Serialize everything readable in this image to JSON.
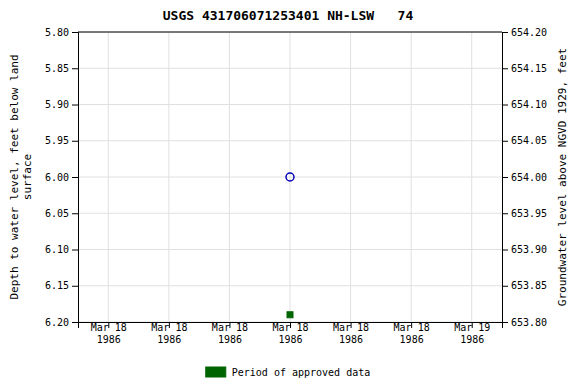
{
  "chart_data": {
    "type": "scatter",
    "title": "USGS 431706071253401 NH-LSW   74",
    "categories": [
      "Mar 18\n1986",
      "Mar 18\n1986",
      "Mar 18\n1986",
      "Mar 18\n1986",
      "Mar 18\n1986",
      "Mar 18\n1986",
      "Mar 19\n1986"
    ],
    "ylabel": "Depth to water level, feet below land\nsurface",
    "y2label": "Groundwater level above NGVD 1929, feet",
    "ylim": [
      6.2,
      5.8
    ],
    "yticks": [
      {
        "value": 5.8,
        "label": "5.80"
      },
      5.85,
      {
        "value": 5.9,
        "label": "5.90"
      },
      5.95,
      {
        "value": 6.0,
        "label": "6.00"
      },
      6.05,
      {
        "value": 6.1,
        "label": "6.10"
      },
      6.15,
      {
        "value": 6.2,
        "label": "6.20"
      }
    ],
    "y2lim": [
      653.8,
      654.2
    ],
    "y2ticks": [
      {
        "value": 654.2,
        "label": "654.20"
      },
      654.15,
      {
        "value": 654.1,
        "label": "654.10"
      },
      654.05,
      {
        "value": 654.0,
        "label": "654.00"
      },
      653.95,
      {
        "value": 653.9,
        "label": "653.90"
      },
      653.85,
      {
        "value": 653.8,
        "label": "653.80"
      }
    ],
    "series": [
      {
        "color": "#0000bb",
        "marker": "open-circle",
        "values": [
          null,
          null,
          null,
          6.0,
          null,
          null,
          null
        ]
      },
      {
        "name": "Period of approved data",
        "color": "#006400",
        "marker": "square",
        "values": [
          null,
          null,
          null,
          6.19,
          null,
          null,
          null
        ]
      }
    ],
    "grid": true,
    "legend": "bottom"
  }
}
